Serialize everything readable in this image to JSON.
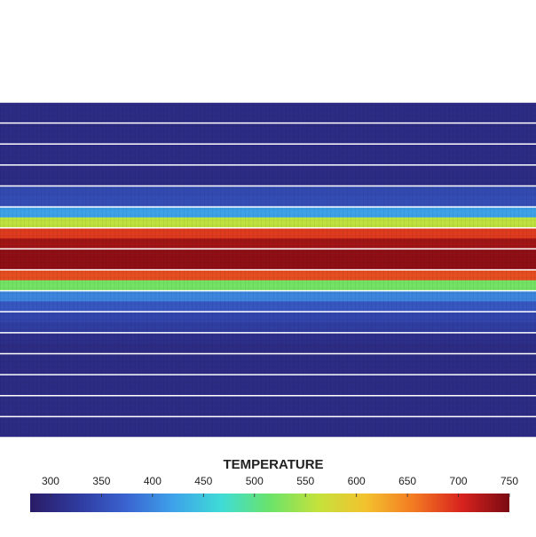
{
  "chart_data": {
    "type": "heatmap",
    "title": "TEMPERATURE",
    "values": [
      305,
      305,
      305,
      305,
      305,
      305,
      305,
      305,
      345,
      350,
      420,
      560,
      690,
      730,
      740,
      740,
      680,
      520,
      400,
      360,
      340,
      330,
      310,
      305,
      305,
      305,
      305,
      305,
      305,
      305,
      305,
      305
    ],
    "clim": [
      280,
      750
    ],
    "cticks": [
      300,
      350,
      400,
      450,
      500,
      550,
      600,
      650,
      700,
      750
    ],
    "colors": [
      "#2a1c66",
      "#2f3a9e",
      "#3a63d0",
      "#3ea3ea",
      "#3fdcd6",
      "#6ae36a",
      "#c4e23c",
      "#f3c22e",
      "#f37a22",
      "#d8231e",
      "#7a0a12"
    ]
  }
}
